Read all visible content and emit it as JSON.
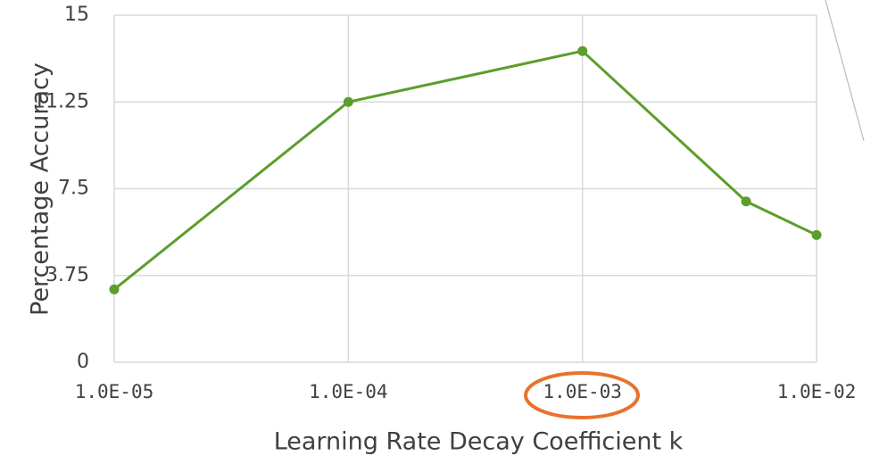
{
  "chart_data": {
    "type": "line",
    "x_label": "Learning Rate Decay Coefficient k",
    "y_label": "Percentage Accuracy",
    "x": [
      1e-05,
      0.0001,
      0.001,
      0.005,
      0.01
    ],
    "series": [
      {
        "name": "Percentage Accuracy",
        "color": "#5b9e2b",
        "values": [
          3.15,
          11.25,
          13.45,
          6.95,
          5.5
        ]
      }
    ],
    "xscale": "log",
    "xlim": [
      1e-05,
      0.01
    ],
    "xticks": [
      {
        "value": 1e-05,
        "label": "1.0E-05"
      },
      {
        "value": 0.0001,
        "label": "1.0E-04"
      },
      {
        "value": 0.001,
        "label": "1.0E-03"
      },
      {
        "value": 0.01,
        "label": "1.0E-02"
      }
    ],
    "ylim": [
      0,
      15
    ],
    "yticks": [
      0,
      3.75,
      7.5,
      11.25,
      15
    ],
    "grid": true
  }
}
